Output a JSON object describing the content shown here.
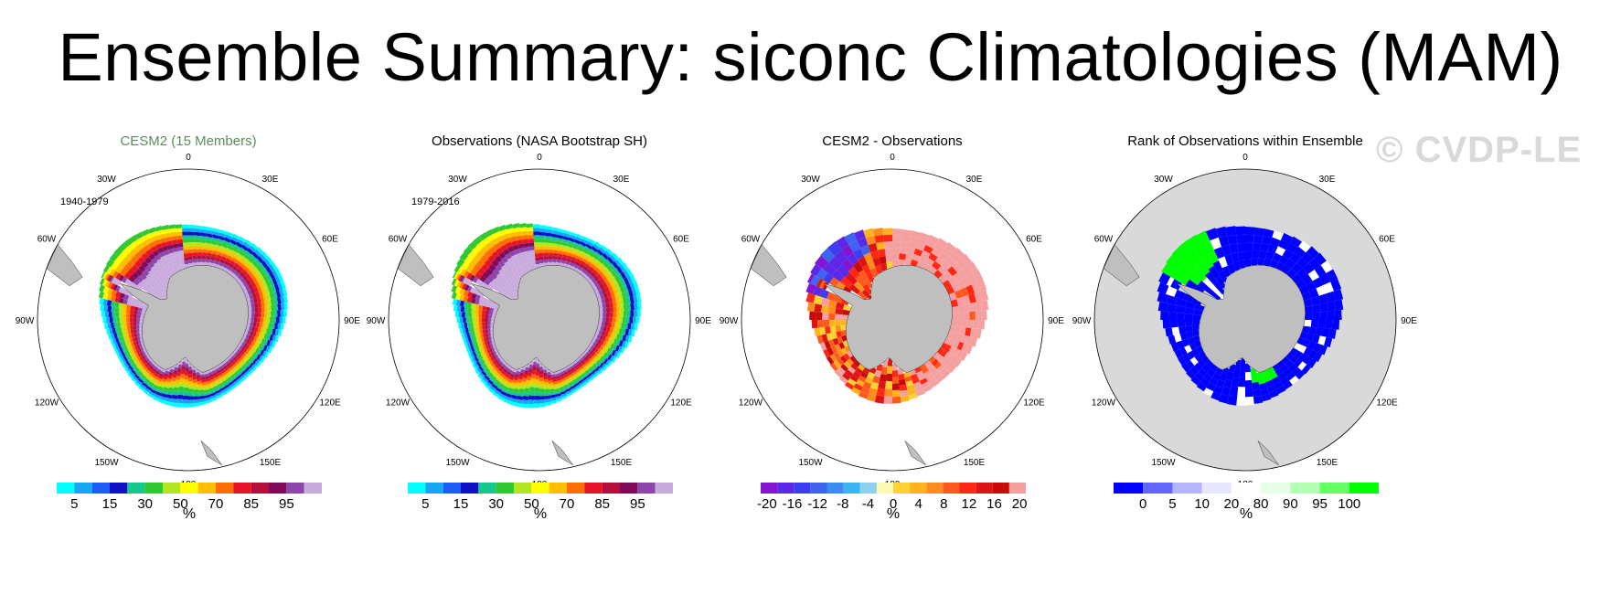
{
  "title": "Ensemble Summary: siconc Climatologies (MAM)",
  "watermark": "© CVDP-LE",
  "colors": {
    "land": "#bfbfbf",
    "rank_bg": "#d9d9d9",
    "ice_scale": [
      "#00ffff",
      "#16a6f2",
      "#1a5cf5",
      "#1010c8",
      "#16c88c",
      "#32c832",
      "#b4e61e",
      "#ffff00",
      "#ffbe00",
      "#ff6e00",
      "#e61428",
      "#b40f3c",
      "#820a5a",
      "#8c46aa",
      "#c8aadc"
    ],
    "diff_scale": [
      "#8214d2",
      "#5a28e6",
      "#3c3cf0",
      "#3c64f0",
      "#3c8cf0",
      "#3cb4f0",
      "#8cd2f0",
      "#fafab4",
      "#ffd232",
      "#ffb41e",
      "#ff8c1e",
      "#ff5a1e",
      "#ff2814",
      "#dc1414",
      "#c80a0a",
      "#f5a0a0"
    ],
    "rank_scale": [
      "#0000ff",
      "#6464ff",
      "#b4b4ff",
      "#e6e6ff",
      "#ffffff",
      "#e6ffe6",
      "#b4ffb4",
      "#64ff64",
      "#00ff00"
    ]
  },
  "panels": [
    {
      "title": "CESM2 (15 Members)",
      "period": "1940-1979",
      "units": "%"
    },
    {
      "title": "Observations (NASA Bootstrap SH)",
      "period": "1979-2016",
      "units": "%"
    },
    {
      "title": "CESM2 - Observations",
      "period": "",
      "units": "%"
    },
    {
      "title": "Rank of Observations within Ensemble",
      "period": "",
      "units": "%"
    }
  ],
  "longitude_labels": [
    "0",
    "30E",
    "60E",
    "90E",
    "120E",
    "150E",
    "180",
    "150W",
    "120W",
    "90W",
    "60W",
    "30W"
  ],
  "chart_data": [
    {
      "type": "map",
      "title": "CESM2 (15 Members)",
      "period": "1940-1979",
      "variable": "siconc",
      "season": "MAM",
      "units": "%",
      "colorbar": {
        "levels": [
          5,
          10,
          15,
          20,
          30,
          40,
          50,
          60,
          70,
          80,
          85,
          90,
          95,
          99
        ],
        "tick_labels": [
          "5",
          "15",
          "30",
          "50",
          "70",
          "85",
          "95"
        ]
      }
    },
    {
      "type": "map",
      "title": "Observations (NASA Bootstrap SH)",
      "period": "1979-2016",
      "variable": "siconc",
      "season": "MAM",
      "units": "%",
      "colorbar": {
        "levels": [
          5,
          10,
          15,
          20,
          30,
          40,
          50,
          60,
          70,
          80,
          85,
          90,
          95,
          99
        ],
        "tick_labels": [
          "5",
          "15",
          "30",
          "50",
          "70",
          "85",
          "95"
        ]
      }
    },
    {
      "type": "map",
      "title": "CESM2 - Observations",
      "units": "%",
      "colorbar": {
        "levels": [
          -20,
          -18,
          -16,
          -14,
          -12,
          -10,
          -8,
          -6,
          -4,
          -2,
          0,
          2,
          4,
          6,
          8,
          10,
          12,
          14,
          16,
          18,
          20
        ],
        "tick_labels": [
          "-20",
          "-16",
          "-12",
          "-8",
          "-4",
          "0",
          "4",
          "8",
          "12",
          "16",
          "20"
        ]
      }
    },
    {
      "type": "map",
      "title": "Rank of Observations within Ensemble",
      "units": "%",
      "colorbar": {
        "levels": [
          0,
          5,
          10,
          20,
          80,
          90,
          95,
          100
        ],
        "tick_labels": [
          "0",
          "5",
          "10",
          "20",
          "80",
          "90",
          "95",
          "100"
        ]
      }
    }
  ]
}
